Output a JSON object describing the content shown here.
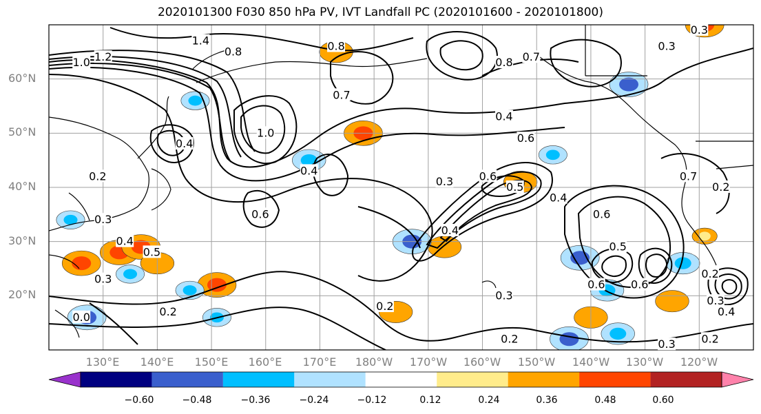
{
  "title": "2020101300 F030 850 hPa PV, IVT Landfall PC (2020101600 - 2020101800)",
  "lat_labels": [
    "60°N",
    "50°N",
    "40°N",
    "30°N",
    "20°N"
  ],
  "lon_labels": [
    "130°E",
    "140°E",
    "150°E",
    "160°E",
    "170°E",
    "180°W",
    "170°W",
    "160°W",
    "150°W",
    "140°W",
    "130°W",
    "120°W"
  ],
  "map": {
    "projection": "PlateCarree",
    "lon_range": [
      120,
      250
    ],
    "lat_range": [
      10,
      70
    ],
    "grid": true,
    "coastlines": true
  },
  "colorbar": {
    "ticks": [
      "−0.60",
      "−0.48",
      "−0.36",
      "−0.24",
      "−0.12",
      "0.12",
      "0.24",
      "0.36",
      "0.48",
      "0.60"
    ],
    "colors": [
      "#9932CC",
      "#000080",
      "#3A5FCD",
      "#00BFFF",
      "#B0E2FF",
      "#FFFFFF",
      "#FFEC8B",
      "#FFA500",
      "#FF4500",
      "#B22222",
      "#FF82AB"
    ],
    "extend": "both"
  },
  "contour_labels": [
    {
      "text": "1.4",
      "lon": 148,
      "lat": 67
    },
    {
      "text": "1.2",
      "lon": 130,
      "lat": 64
    },
    {
      "text": "1.0",
      "lon": 126,
      "lat": 63
    },
    {
      "text": "0.8",
      "lon": 154,
      "lat": 65
    },
    {
      "text": "0.8",
      "lon": 173,
      "lat": 66
    },
    {
      "text": "0.7",
      "lon": 174,
      "lat": 57
    },
    {
      "text": "0.8",
      "lon": 204,
      "lat": 63
    },
    {
      "text": "0.7",
      "lon": 209,
      "lat": 64
    },
    {
      "text": "0.4",
      "lon": 204,
      "lat": 53
    },
    {
      "text": "0.4",
      "lon": 145,
      "lat": 48
    },
    {
      "text": "1.0",
      "lon": 160,
      "lat": 50
    },
    {
      "text": "0.6",
      "lon": 159,
      "lat": 35
    },
    {
      "text": "0.4",
      "lon": 168,
      "lat": 43
    },
    {
      "text": "0.6",
      "lon": 208,
      "lat": 49
    },
    {
      "text": "0.3",
      "lon": 193,
      "lat": 41
    },
    {
      "text": "0.6",
      "lon": 201,
      "lat": 42
    },
    {
      "text": "0.5",
      "lon": 206,
      "lat": 40
    },
    {
      "text": "0.4",
      "lon": 194,
      "lat": 32
    },
    {
      "text": "0.4",
      "lon": 214,
      "lat": 38
    },
    {
      "text": "0.6",
      "lon": 222,
      "lat": 35
    },
    {
      "text": "0.5",
      "lon": 225,
      "lat": 29
    },
    {
      "text": "0.6",
      "lon": 221,
      "lat": 22
    },
    {
      "text": "0.6",
      "lon": 229,
      "lat": 22
    },
    {
      "text": "0.2",
      "lon": 242,
      "lat": 24
    },
    {
      "text": "0.3",
      "lon": 243,
      "lat": 19
    },
    {
      "text": "0.4",
      "lon": 245,
      "lat": 17
    },
    {
      "text": "0.2",
      "lon": 242,
      "lat": 12
    },
    {
      "text": "0.3",
      "lon": 234,
      "lat": 11
    },
    {
      "text": "0.2",
      "lon": 142,
      "lat": 17
    },
    {
      "text": "0.2",
      "lon": 182,
      "lat": 18
    },
    {
      "text": "0.3",
      "lon": 204,
      "lat": 20
    },
    {
      "text": "0.2",
      "lon": 205,
      "lat": 12
    },
    {
      "text": "0.5",
      "lon": 139,
      "lat": 28
    },
    {
      "text": "0.4",
      "lon": 134,
      "lat": 30
    },
    {
      "text": "0.3",
      "lon": 130,
      "lat": 23
    },
    {
      "text": "0.3",
      "lon": 130,
      "lat": 34
    },
    {
      "text": "0.2",
      "lon": 129,
      "lat": 42
    },
    {
      "text": "0.0",
      "lon": 126,
      "lat": 16
    },
    {
      "text": "0.3",
      "lon": 234,
      "lat": 66
    },
    {
      "text": "0.3",
      "lon": 240,
      "lat": 69
    },
    {
      "text": "0.2",
      "lon": 244,
      "lat": 40
    },
    {
      "text": "0.7",
      "lon": 238,
      "lat": 42
    }
  ],
  "pv_anomalies": [
    {
      "lon": 126,
      "lat": 26,
      "value": 0.36
    },
    {
      "lon": 133,
      "lat": 28,
      "value": 0.36
    },
    {
      "lon": 137,
      "lat": 29,
      "value": 0.36
    },
    {
      "lon": 140,
      "lat": 26,
      "value": 0.3
    },
    {
      "lon": 151,
      "lat": 22,
      "value": 0.36
    },
    {
      "lon": 178,
      "lat": 50,
      "value": 0.36
    },
    {
      "lon": 184,
      "lat": 17,
      "value": 0.3
    },
    {
      "lon": 207,
      "lat": 41,
      "value": 0.3
    },
    {
      "lon": 193,
      "lat": 29,
      "value": 0.3
    },
    {
      "lon": 235,
      "lat": 19,
      "value": 0.3
    },
    {
      "lon": 220,
      "lat": 16,
      "value": 0.3
    },
    {
      "lon": 241,
      "lat": 70,
      "value": 0.36
    },
    {
      "lon": 173,
      "lat": 65,
      "value": 0.3
    },
    {
      "lon": 241,
      "lat": 31,
      "value": 0.2
    },
    {
      "lon": 187,
      "lat": 30,
      "value": -0.36
    },
    {
      "lon": 168,
      "lat": 45,
      "value": -0.3
    },
    {
      "lon": 218,
      "lat": 27,
      "value": -0.36
    },
    {
      "lon": 227,
      "lat": 59,
      "value": -0.36
    },
    {
      "lon": 213,
      "lat": 46,
      "value": -0.24
    },
    {
      "lon": 237,
      "lat": 26,
      "value": -0.3
    },
    {
      "lon": 223,
      "lat": 21,
      "value": -0.3
    },
    {
      "lon": 216,
      "lat": 12,
      "value": -0.36
    },
    {
      "lon": 225,
      "lat": 13,
      "value": -0.3
    },
    {
      "lon": 127,
      "lat": 16,
      "value": -0.36
    },
    {
      "lon": 124,
      "lat": 34,
      "value": -0.24
    },
    {
      "lon": 146,
      "lat": 21,
      "value": -0.24
    },
    {
      "lon": 151,
      "lat": 16,
      "value": -0.24
    },
    {
      "lon": 147,
      "lat": 56,
      "value": -0.24
    },
    {
      "lon": 135,
      "lat": 24,
      "value": -0.24
    }
  ]
}
